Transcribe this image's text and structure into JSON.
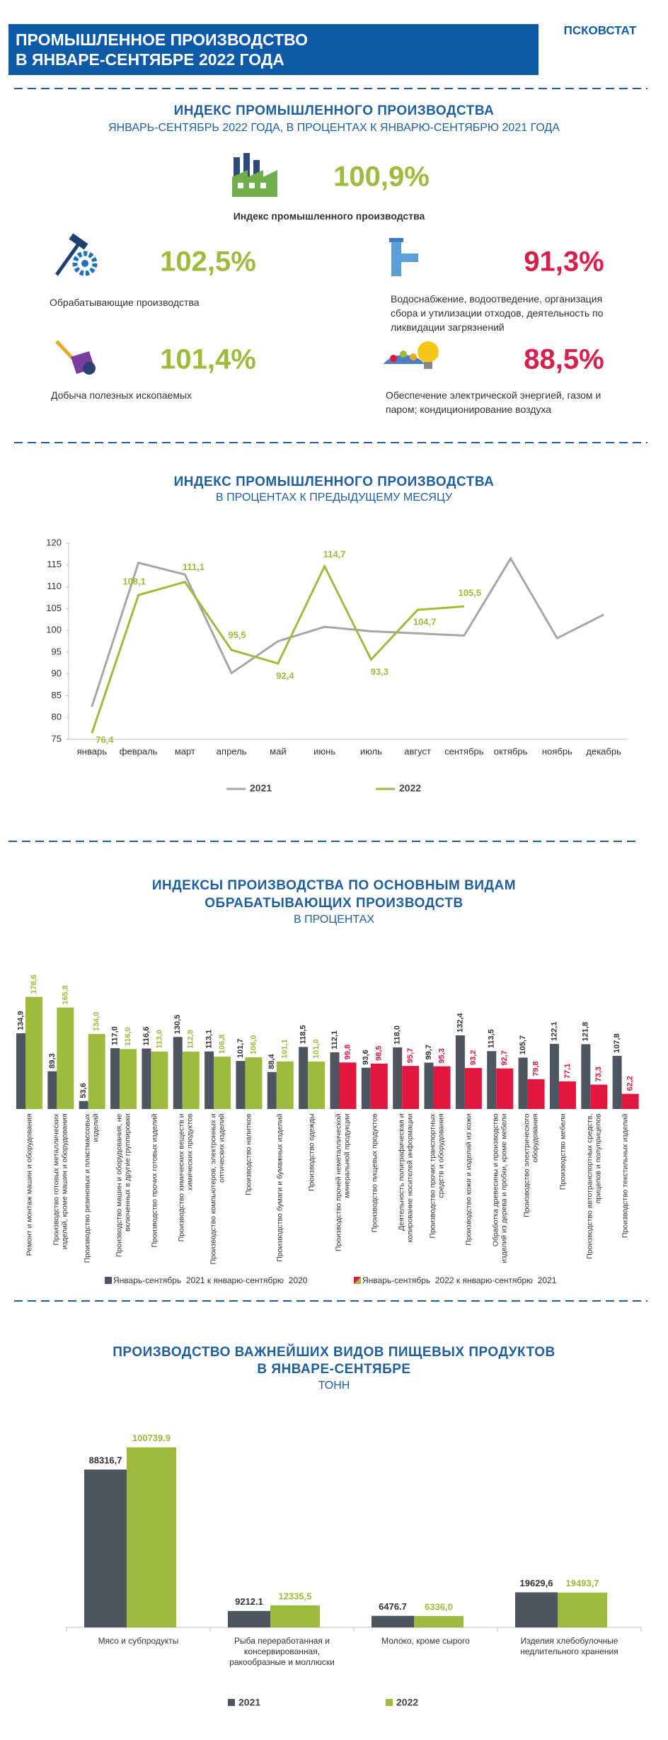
{
  "header": {
    "title_lines": [
      "ПРОМЫШЛЕННОЕ ПРОИЗВОДСТВО",
      "В ЯНВАРЕ-СЕНТЯБРЕ 2022 ГОДА"
    ],
    "agency": "ПСКОВСТАТ"
  },
  "index_section": {
    "title": "ИНДЕКС ПРОМЫШЛЕННОГО ПРОИЗВОДСТВА",
    "subtitle": "ЯНВАРЬ-СЕНТЯБРЬ 2022 ГОДА, В ПРОЦЕНТАХ К ЯНВАРЮ-СЕНТЯБРЮ 2021 ГОДА",
    "main": {
      "value": "100,9%",
      "caption": "Индекс промышленного производства"
    },
    "items": [
      {
        "value": "102,5%",
        "caption": "Обрабатывающие производства"
      },
      {
        "value": "91,3%",
        "caption": "Водоснабжение, водоотведение, организация сбора и утилизации отходов, деятельность по ликвидации загрязнений"
      },
      {
        "value": "101,4%",
        "caption": "Добыча полезных ископаемых"
      },
      {
        "value": "88,5%",
        "caption": "Обеспечение электрической энергией, газом и паром; кондиционирование воздуха"
      }
    ]
  },
  "chart_data": [
    {
      "type": "line",
      "title": "ИНДЕКС ПРОМЫШЛЕННОГО ПРОИЗВОДСТВА",
      "subtitle": "В ПРОЦЕНТАХ К ПРЕДЫДУЩЕМУ МЕСЯЦУ",
      "categories": [
        "январь",
        "февраль",
        "март",
        "апрель",
        "май",
        "июнь",
        "июль",
        "август",
        "сентябрь",
        "октябрь",
        "ноябрь",
        "декабрь"
      ],
      "series": [
        {
          "name": "2021",
          "color": "#a6a6a6",
          "values": [
            82.5,
            115.5,
            112.8,
            90.2,
            97.5,
            100.8,
            99.8,
            99.3,
            98.8,
            116.5,
            98.2,
            103.6
          ]
        },
        {
          "name": "2022",
          "color": "#9dbb3c",
          "values": [
            76.4,
            108.1,
            111.1,
            95.5,
            92.4,
            114.7,
            93.3,
            104.7,
            105.5,
            null,
            null,
            null
          ],
          "value_labels": [
            "76,4",
            "108,1",
            "111,1",
            "95,5",
            "92,4",
            "114,7",
            "93,3",
            "104,7",
            "105,5",
            null,
            null,
            null
          ]
        }
      ],
      "ylim": [
        75,
        120
      ],
      "yticks": [
        75,
        80,
        85,
        90,
        95,
        100,
        105,
        110,
        115,
        120
      ],
      "legend": "bottom"
    },
    {
      "type": "bar",
      "title": [
        "ИНДЕКСЫ ПРОИЗВОДСТВА ПО ОСНОВНЫМ ВИДАМ",
        "ОБРАБАТЫВАЮЩИХ ПРОИЗВОДСТВ"
      ],
      "subtitle": "В ПРОЦЕНТАХ",
      "categories": [
        "Ремонт и монтаж машин и оборудования",
        "Производство готовых металлических изделий, кроме машин и оборудования",
        "Производство резиновых и пластмассовых изделий",
        "Производство машин и оборудования, не включенных в другие группировки",
        "Производство прочих готовых изделий",
        "Производство химических веществ и химических продуктов",
        "Производство компьютеров, электронных и оптических изделий",
        "Производство напитков",
        "Производство бумаги и бумажных изделий",
        "Производство одежды",
        "Производство прочей неметаллической минеральной продукции",
        "Производство пищевых продуктов",
        "Деятельность полиграфическая и копирование носителей информации",
        "Производство прочих транспортных средств и оборудования",
        "Производство кожи и изделий из кожи",
        "Обработка древесины и производство изделий из дерева и пробки, кроме мебели",
        "Производство электрического оборудования",
        "Производство мебели",
        "Производство автотранспортных средств, прицепов и полуприцепов",
        "Производство текстильных изделий"
      ],
      "series": [
        {
          "name": "Январь-сентябрь  2021 к январю-сентябрю  2020",
          "color": "#4d5560",
          "values": [
            134.9,
            89.3,
            53.6,
            117.0,
            116.6,
            130.5,
            113.1,
            101.7,
            88.4,
            118.5,
            112.1,
            93.6,
            118.0,
            99.7,
            132.4,
            113.5,
            105.7,
            122.1,
            121.8,
            107.8
          ],
          "value_labels": [
            "134,9",
            "89,3",
            "53,6",
            "117,0",
            "116,6",
            "130,5",
            "113,1",
            "101,7",
            "88,4",
            "118,5",
            "112,1",
            "93,6",
            "118,0",
            "99,7",
            "132,4",
            "113,5",
            "105,7",
            "122,1",
            "121,8",
            "107,8"
          ]
        },
        {
          "name": "Январь-сентябрь  2022 к январю-сентябрю  2021",
          "colors": [
            "#9dbb3c",
            "#9dbb3c",
            "#9dbb3c",
            "#9dbb3c",
            "#9dbb3c",
            "#9dbb3c",
            "#9dbb3c",
            "#9dbb3c",
            "#9dbb3c",
            "#9dbb3c",
            "#e0173f",
            "#e0173f",
            "#e0173f",
            "#e0173f",
            "#e0173f",
            "#e0173f",
            "#e0173f",
            "#e0173f",
            "#e0173f",
            "#e0173f"
          ],
          "values": [
            178.6,
            165.8,
            134.0,
            116.0,
            113.0,
            112.8,
            106.8,
            106.0,
            101.1,
            101.0,
            99.8,
            98.5,
            95.7,
            95.3,
            93.2,
            92.7,
            79.8,
            77.1,
            73.3,
            62.2
          ],
          "value_labels": [
            "178,6",
            "165,8",
            "134,0",
            "116,0",
            "113,0",
            "112,8",
            "106,8",
            "106,0",
            "101,1",
            "101,0",
            "99,8",
            "98,5",
            "95,7",
            "95,3",
            "93,2",
            "92,7",
            "79,8",
            "77,1",
            "73,3",
            "62,2"
          ]
        }
      ],
      "ylim": [
        44,
        180
      ],
      "legend": "bottom"
    },
    {
      "type": "bar",
      "title": [
        "ПРОИЗВОДСТВО ВАЖНЕЙШИХ ВИДОВ ПИЩЕВЫХ ПРОДУКТОВ",
        "В ЯНВАРЕ-СЕНТЯБРЕ"
      ],
      "subtitle": "ТОНН",
      "categories": [
        "Мясо и субпродукты",
        "Рыба переработанная и консервированная, ракообразные и моллюски",
        "Молоко, кроме сырого",
        "Изделия хлебобулочные недлительного хранения"
      ],
      "series": [
        {
          "name": "2021",
          "color": "#4d5560",
          "values": [
            88316.7,
            9212.1,
            6476.7,
            19629.6
          ],
          "value_labels": [
            "88316,7",
            "9212.1",
            "6476.7",
            "19629,6"
          ]
        },
        {
          "name": "2022",
          "color": "#9dbb3c",
          "values": [
            100739.9,
            12335.5,
            6336.0,
            19493.7
          ],
          "value_labels": [
            "100739.9",
            "12335,5",
            "6336,0",
            "19493,7"
          ]
        }
      ],
      "ylim": [
        0,
        105000
      ],
      "legend": "bottom"
    }
  ]
}
